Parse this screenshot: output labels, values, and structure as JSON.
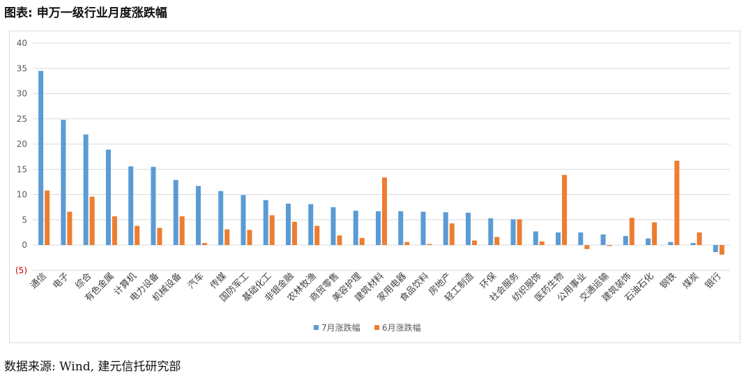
{
  "figure": {
    "title": "图表:  申万一级行业月度涨跌幅",
    "source": "数据来源: Wind,  建元信托研究部"
  },
  "colors": {
    "series1": "#5b9bd5",
    "series2": "#ed7d31",
    "grid": "#d9d9d9",
    "negative_tick": "#c00000"
  },
  "chart_data": {
    "type": "bar",
    "title": "",
    "xlabel": "",
    "ylabel": "",
    "ylim": [
      -5,
      40
    ],
    "yticks": [
      -5,
      0,
      5,
      10,
      15,
      20,
      25,
      30,
      35,
      40
    ],
    "ytick_labels": [
      "(5)",
      "0",
      "5",
      "10",
      "15",
      "20",
      "25",
      "30",
      "35",
      "40"
    ],
    "grid": true,
    "legend": "bottom-center",
    "categories": [
      "通信",
      "电子",
      "综合",
      "有色金属",
      "计算机",
      "电力设备",
      "机械设备",
      "汽车",
      "传媒",
      "国防军工",
      "基础化工",
      "非银金融",
      "农林牧渔",
      "商贸零售",
      "美容护理",
      "建筑材料",
      "家用电器",
      "食品饮料",
      "房地产",
      "轻工制造",
      "环保",
      "社会服务",
      "纺织服饰",
      "医药生物",
      "公用事业",
      "交通运输",
      "建筑装饰",
      "石油石化",
      "钢铁",
      "煤炭",
      "银行"
    ],
    "series": [
      {
        "name": "7月涨跌幅",
        "values": [
          34.5,
          24.8,
          21.9,
          18.9,
          15.6,
          15.5,
          12.9,
          11.7,
          10.7,
          9.9,
          8.9,
          8.2,
          8.1,
          7.5,
          6.8,
          6.7,
          6.7,
          6.6,
          6.5,
          6.4,
          5.3,
          5.1,
          2.7,
          2.5,
          2.5,
          2.1,
          1.8,
          1.3,
          0.6,
          0.4,
          -1.4
        ]
      },
      {
        "name": "6月涨跌幅",
        "values": [
          10.8,
          6.6,
          9.6,
          5.7,
          3.8,
          3.4,
          5.7,
          0.4,
          3.1,
          3.0,
          5.9,
          4.6,
          3.8,
          1.9,
          1.4,
          13.4,
          0.6,
          0.2,
          4.3,
          0.9,
          1.6,
          5.1,
          0.7,
          13.9,
          -0.8,
          -0.2,
          5.4,
          4.5,
          16.7,
          2.5,
          -1.9
        ]
      }
    ]
  }
}
